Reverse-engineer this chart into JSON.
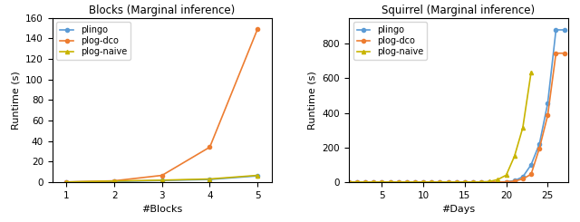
{
  "blocks_title": "Blocks (Marginal inference)",
  "blocks_xlabel": "#Blocks",
  "blocks_ylabel": "Runtime (s)",
  "blocks_x": [
    1,
    2,
    3,
    4,
    5
  ],
  "blocks_plingo": [
    0.05,
    0.4,
    1.5,
    2.5,
    6.0
  ],
  "blocks_plog_dco": [
    0.05,
    1.2,
    6.5,
    34.0,
    149.0
  ],
  "blocks_plog_naive": [
    0.05,
    1.0,
    1.8,
    3.0,
    6.5
  ],
  "squirrel_title": "Squirrel (Marginal inference)",
  "squirrel_xlabel": "#Days",
  "squirrel_ylabel": "Runtime (s)",
  "sq_plingo_x": [
    1,
    2,
    3,
    4,
    5,
    6,
    7,
    8,
    9,
    10,
    11,
    12,
    13,
    14,
    15,
    16,
    17,
    18,
    19,
    20,
    21,
    22,
    23,
    24,
    25,
    26,
    27
  ],
  "sq_plingo_y": [
    0.05,
    0.05,
    0.05,
    0.05,
    0.05,
    0.05,
    0.05,
    0.05,
    0.05,
    0.05,
    0.05,
    0.05,
    0.05,
    0.05,
    0.05,
    0.05,
    0.05,
    0.05,
    0.1,
    1.5,
    8.0,
    30.0,
    100.0,
    220.0,
    455.0,
    880.0,
    880.0
  ],
  "sq_plog_dco_x": [
    1,
    2,
    3,
    4,
    5,
    6,
    7,
    8,
    9,
    10,
    11,
    12,
    13,
    14,
    15,
    16,
    17,
    18,
    19,
    20,
    21,
    22,
    23,
    24,
    25,
    26,
    27
  ],
  "sq_plog_dco_y": [
    0.05,
    0.05,
    0.05,
    0.05,
    0.05,
    0.05,
    0.05,
    0.05,
    0.05,
    0.05,
    0.05,
    0.05,
    0.05,
    0.05,
    0.05,
    0.05,
    0.05,
    0.05,
    0.1,
    0.5,
    5.0,
    18.0,
    45.0,
    195.0,
    385.0,
    745.0,
    745.0
  ],
  "sq_plog_naive_x": [
    1,
    2,
    3,
    4,
    5,
    6,
    7,
    8,
    9,
    10,
    11,
    12,
    13,
    14,
    15,
    16,
    17,
    18,
    19,
    20,
    21,
    22,
    23
  ],
  "sq_plog_naive_y": [
    0.05,
    0.05,
    0.05,
    0.05,
    0.05,
    0.05,
    0.05,
    0.05,
    0.05,
    0.05,
    0.05,
    0.05,
    0.05,
    0.05,
    0.1,
    0.3,
    1.0,
    3.0,
    15.0,
    40.0,
    150.0,
    315.0,
    635.0
  ],
  "color_plingo": "#5b9bd5",
  "color_plog_dco": "#ed7d31",
  "color_plog_naive": "#c8b400",
  "marker_plingo": "o",
  "marker_plog_dco": "o",
  "marker_plog_naive": "^",
  "legend_plingo": "plingo",
  "legend_plog_dco": "plog-dco",
  "legend_plog_naive": "plog-naive",
  "blocks_ylim": [
    0,
    160
  ],
  "squirrel_ylim": [
    0,
    950
  ],
  "squirrel_xlim": [
    1,
    27.5
  ],
  "blocks_xlim": [
    0.7,
    5.3
  ]
}
